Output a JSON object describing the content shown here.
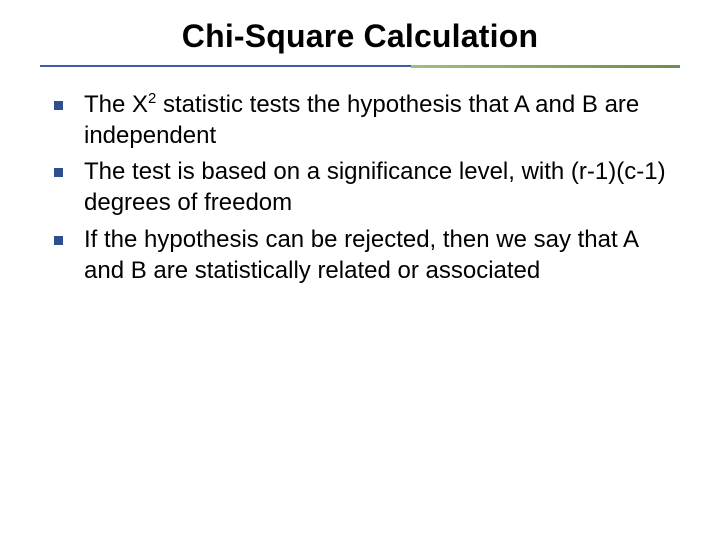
{
  "slide": {
    "title": "Chi-Square Calculation",
    "title_color": "#000000",
    "title_fontsize": 32,
    "rule_main_color": "#3b5ba5",
    "rule_accent_color_start": "#9fbf7f",
    "rule_accent_color_end": "#6b8f49",
    "bullet_marker_color": "#2f4e8f",
    "body_fontsize": 24,
    "bullets": [
      {
        "pre": "The Χ",
        "sup": "2",
        "post": " statistic tests the hypothesis that A and B are independent"
      },
      {
        "pre": "The test is based on a significance level, with (r-1)(c-1) degrees of freedom",
        "sup": "",
        "post": ""
      },
      {
        "pre": "If the hypothesis can be rejected, then we say that A and B are statistically related or associated",
        "sup": "",
        "post": ""
      }
    ]
  }
}
